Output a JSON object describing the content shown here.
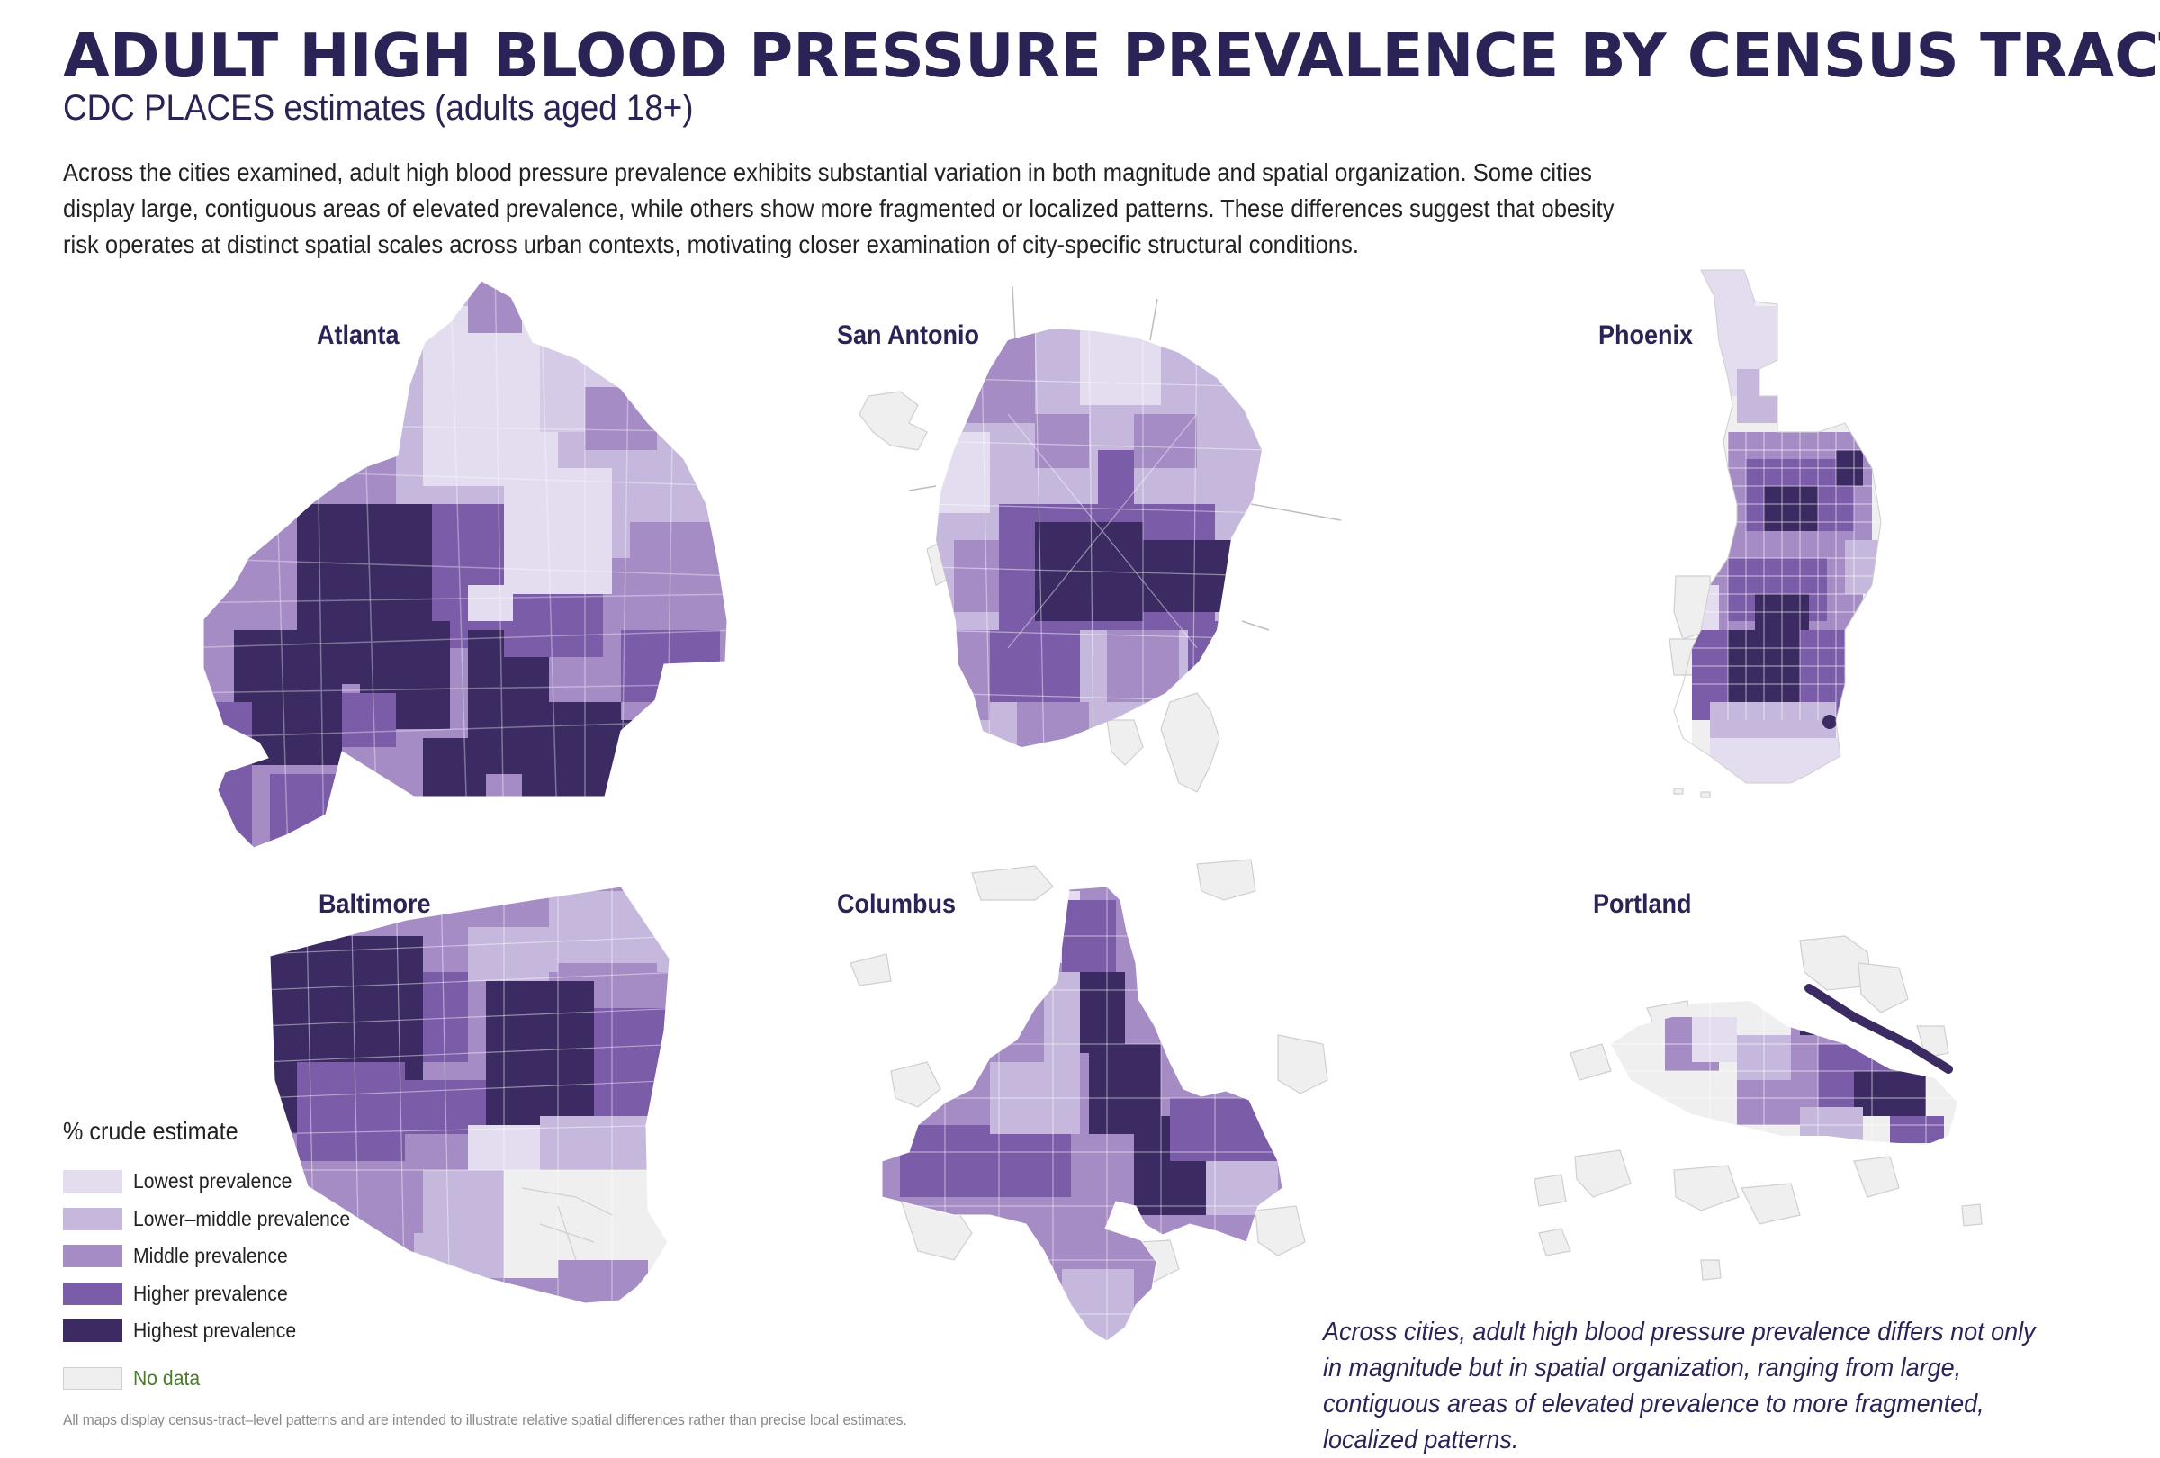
{
  "title": "ADULT HIGH BLOOD PRESSURE PREVALENCE BY CENSUS TRACT",
  "subtitle": "CDC PLACES estimates (adults aged 18+)",
  "intro": "Across the cities examined, adult high blood pressure prevalence exhibits substantial variation in both magnitude and spatial organization. Some cities display large, contiguous areas of elevated prevalence, while others show more fragmented or localized patterns. These differences suggest that obesity risk operates at distinct spatial scales across urban contexts, motivating closer examination of city-specific structural conditions.",
  "maps": [
    {
      "name": "Atlanta"
    },
    {
      "name": "San Antonio"
    },
    {
      "name": "Phoenix"
    },
    {
      "name": "Baltimore"
    },
    {
      "name": "Columbus"
    },
    {
      "name": "Portland"
    }
  ],
  "legend": {
    "title": "% crude estimate",
    "items": [
      {
        "label": "Lowest prevalence",
        "color": "#e4dcef"
      },
      {
        "label": "Lower–middle prevalence",
        "color": "#c6b8dc"
      },
      {
        "label": "Middle prevalence",
        "color": "#a58cc5"
      },
      {
        "label": "Higher prevalence",
        "color": "#7a5ca8"
      },
      {
        "label": "Highest prevalence",
        "color": "#3c2b62"
      }
    ],
    "no_data": {
      "label": "No data",
      "color": "#efefef"
    }
  },
  "callout": "Across cities, adult high blood pressure prevalence differs not only in magnitude but in spatial organization, ranging from large, contiguous areas of elevated prevalence to more fragmented, localized patterns.",
  "footnote": "All maps display census-tract–level patterns and are intended to illustrate relative spatial differences rather than precise local estimates."
}
